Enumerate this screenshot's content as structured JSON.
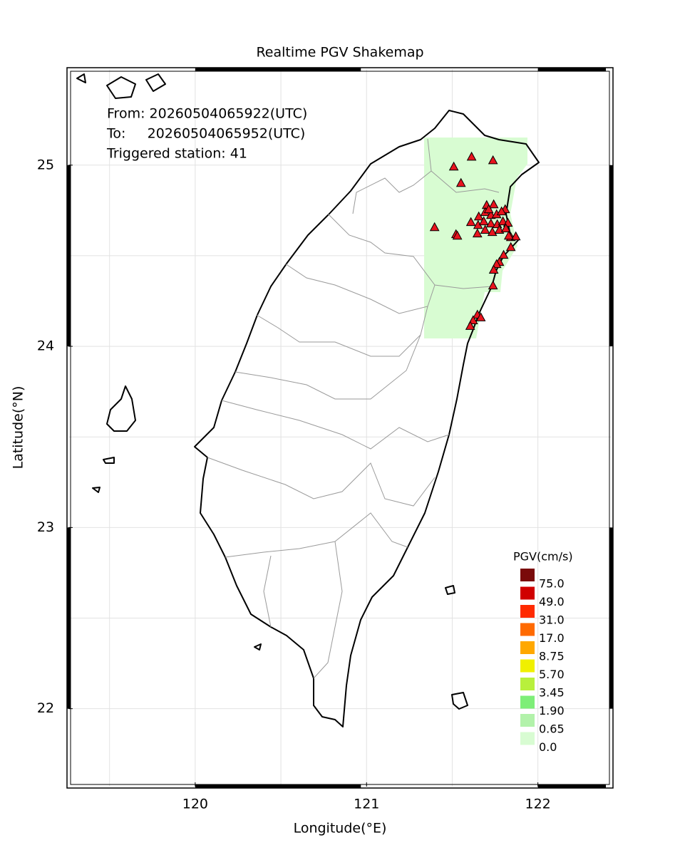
{
  "chart_data": {
    "type": "map",
    "title": "Realtime PGV Shakemap",
    "info": [
      "From: 20260504065922(UTC)",
      "To:     20260504065952(UTC)",
      "Triggered station: 41"
    ],
    "xlabel": "Longitude(°E)",
    "ylabel": "Latitude(°N)",
    "xlim": [
      119.26,
      122.43
    ],
    "ylim": [
      21.57,
      25.53
    ],
    "xticks": [
      120,
      121,
      122
    ],
    "yticks": [
      22,
      23,
      24,
      25
    ],
    "xgrid": [
      119.5,
      120,
      120.5,
      121,
      121.5,
      122
    ],
    "ygrid": [
      22,
      22.5,
      23,
      23.5,
      24,
      24.5,
      25
    ],
    "grid_color": "#e2e2e2",
    "stations": {
      "color": "#e8141e",
      "x": [
        121.509,
        121.613,
        121.738,
        121.551,
        121.397,
        121.522,
        121.53,
        121.701,
        121.742,
        121.809,
        121.655,
        121.692,
        121.726,
        121.759,
        121.788,
        121.609,
        121.651,
        121.684,
        121.726,
        121.763,
        121.796,
        121.825,
        121.647,
        121.692,
        121.734,
        121.775,
        121.813,
        121.842,
        121.871,
        121.842,
        121.8,
        121.775,
        121.759,
        121.742,
        121.738,
        121.647,
        121.622,
        121.605,
        121.667,
        121.83,
        121.713
      ],
      "y": [
        24.992,
        25.047,
        25.027,
        24.902,
        24.658,
        24.619,
        24.611,
        24.78,
        24.784,
        24.757,
        24.717,
        24.741,
        24.725,
        24.729,
        24.745,
        24.686,
        24.67,
        24.69,
        24.678,
        24.674,
        24.69,
        24.682,
        24.623,
        24.643,
        24.631,
        24.643,
        24.651,
        24.603,
        24.607,
        24.548,
        24.505,
        24.466,
        24.454,
        24.423,
        24.336,
        24.175,
        24.144,
        24.113,
        24.16,
        24.611,
        24.757
      ]
    },
    "legend": {
      "title": "PGV(cm/s)",
      "items": [
        {
          "value": 75,
          "label": "75.0",
          "color": "#7a0a0a"
        },
        {
          "value": 49,
          "label": "49.0",
          "color": "#d00000"
        },
        {
          "value": 31,
          "label": "31.0",
          "color": "#ff2a00"
        },
        {
          "value": 17,
          "label": "17.0",
          "color": "#ff6a00"
        },
        {
          "value": 8.75,
          "label": "8.75",
          "color": "#ffa800"
        },
        {
          "value": 5.7,
          "label": "5.70",
          "color": "#f0f000"
        },
        {
          "value": 3.45,
          "label": "3.45",
          "color": "#b8f03c"
        },
        {
          "value": 1.9,
          "label": "1.90",
          "color": "#7eee78"
        },
        {
          "value": 0.65,
          "label": "0.65",
          "color": "#b2f2aa"
        },
        {
          "value": 0,
          "label": "0.0",
          "color": "#d8fcd2"
        }
      ]
    }
  }
}
